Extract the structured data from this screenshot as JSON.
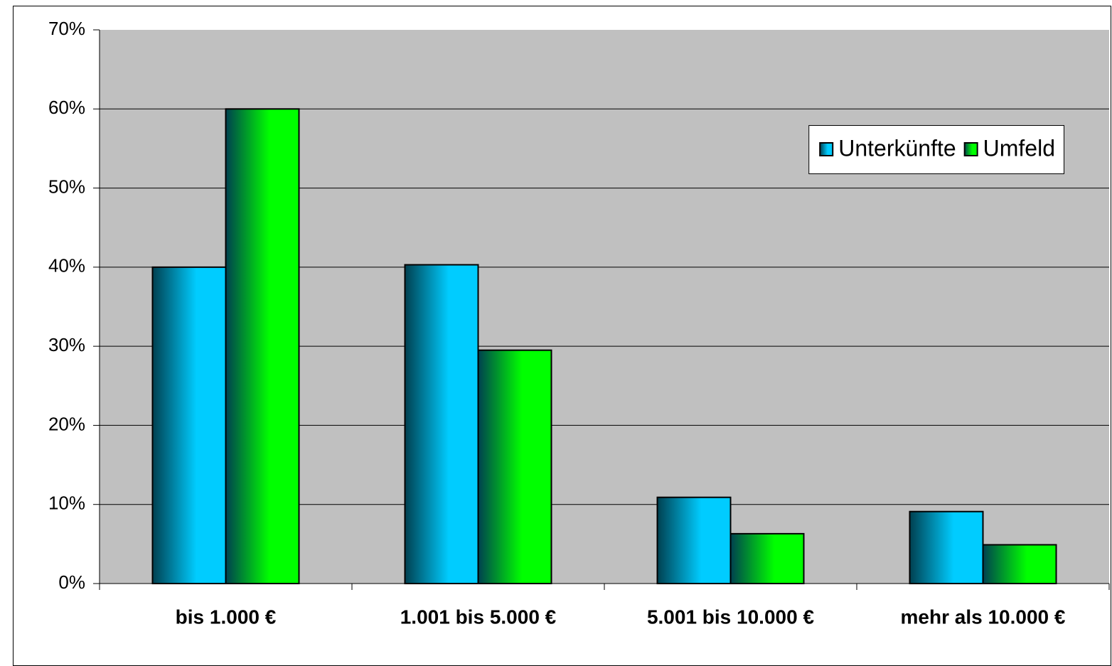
{
  "chart_data": {
    "type": "bar",
    "categories": [
      "bis 1.000 €",
      "1.001 bis 5.000 €",
      "5.001 bis 10.000 €",
      "mehr als 10.000 €"
    ],
    "series": [
      {
        "name": "Unterkünfte",
        "color": "#00ccff",
        "values": [
          40,
          40.3,
          10.9,
          9.1
        ]
      },
      {
        "name": "Umfeld",
        "color": "#00ff00",
        "values": [
          60,
          29.5,
          6.3,
          4.9
        ]
      }
    ],
    "ylim": [
      0,
      70
    ],
    "yticks": [
      {
        "value": 0,
        "label": "0%"
      },
      {
        "value": 10,
        "label": "10%"
      },
      {
        "value": 20,
        "label": "20%"
      },
      {
        "value": 30,
        "label": "30%"
      },
      {
        "value": 40,
        "label": "40%"
      },
      {
        "value": 50,
        "label": "50%"
      },
      {
        "value": 60,
        "label": "60%"
      },
      {
        "value": 70,
        "label": "70%"
      }
    ],
    "grid": true,
    "legend": "upper right"
  }
}
